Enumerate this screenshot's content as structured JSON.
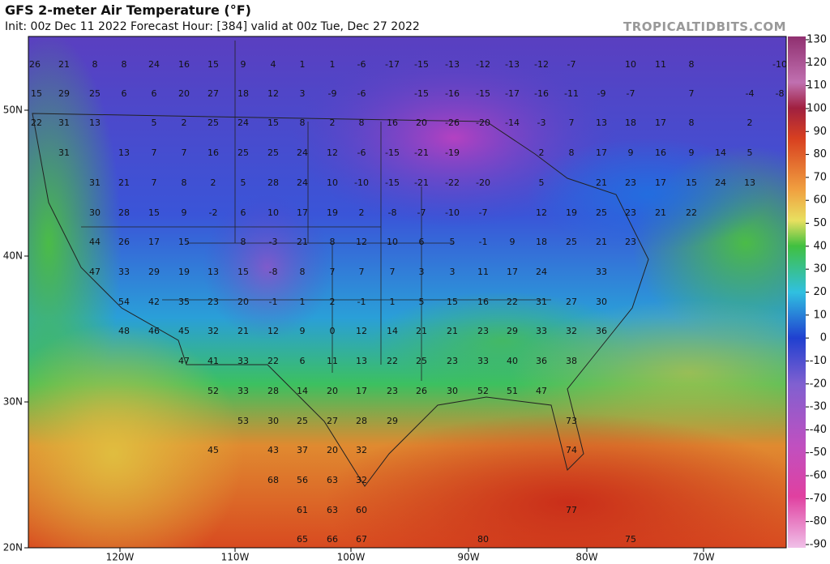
{
  "header": {
    "title": "GFS 2-meter Air Temperature (°F)",
    "subtitle": "Init: 00z Dec 11 2022   Forecast Hour: [384]   valid at 00z Tue, Dec 27 2022",
    "brand": "TROPICALTIDBITS.COM"
  },
  "map": {
    "lat_labels": [
      "50N",
      "40N",
      "30N",
      "20N"
    ],
    "lon_labels": [
      "120W",
      "110W",
      "100W",
      "90W",
      "80W",
      "70W"
    ],
    "colorbar_ticks": [
      130,
      120,
      110,
      100,
      90,
      80,
      70,
      60,
      50,
      40,
      30,
      20,
      10,
      0,
      -10,
      -20,
      -30,
      -40,
      -50,
      -60,
      -70,
      -80,
      -90
    ],
    "station_values": [
      [
        26,
        21,
        8,
        8,
        24,
        16,
        15,
        9,
        4,
        1,
        1,
        -6,
        -17,
        -15,
        -13,
        -12,
        -13,
        -12,
        -7,
        10,
        11,
        8,
        -10
      ],
      [
        15,
        29,
        25,
        6,
        6,
        20,
        27,
        18,
        12,
        3,
        -9,
        -6,
        -15,
        -16,
        -15,
        -17,
        -16,
        -11,
        -9,
        -7,
        7,
        -4,
        -8
      ],
      [
        22,
        31,
        13,
        5,
        2,
        25,
        24,
        15,
        8,
        2,
        8,
        16,
        20,
        -26,
        -20,
        -14,
        -3,
        7,
        13,
        18,
        17,
        8,
        2
      ],
      [
        31,
        13,
        7,
        7,
        16,
        25,
        25,
        24,
        12,
        -6,
        -15,
        -21,
        -19,
        2,
        8,
        17,
        9,
        16,
        9,
        14,
        5
      ],
      [
        31,
        21,
        7,
        8,
        2,
        5,
        28,
        24,
        10,
        -10,
        -15,
        -21,
        -22,
        -20,
        5,
        21,
        23,
        17,
        15,
        24,
        13
      ],
      [
        30,
        28,
        15,
        9,
        -2,
        6,
        10,
        17,
        19,
        2,
        -8,
        -7,
        -10,
        -7,
        12,
        19,
        25,
        23,
        21,
        22
      ],
      [
        44,
        26,
        17,
        15,
        8,
        -3,
        21,
        8,
        12,
        10,
        6,
        5,
        -1,
        9,
        18,
        25,
        21,
        23
      ],
      [
        47,
        33,
        29,
        19,
        13,
        15,
        -8,
        8,
        7,
        7,
        7,
        3,
        3,
        11,
        17,
        24,
        33
      ],
      [
        54,
        42,
        35,
        23,
        20,
        -1,
        1,
        2,
        -1,
        1,
        5,
        15,
        16,
        22,
        31,
        27,
        30
      ],
      [
        48,
        46,
        45,
        32,
        21,
        12,
        9,
        0,
        12,
        14,
        21,
        21,
        23,
        29,
        33,
        32,
        36
      ],
      [
        47,
        41,
        33,
        22,
        6,
        11,
        13,
        22,
        25,
        23,
        33,
        40,
        36,
        38
      ],
      [
        52,
        33,
        28,
        14,
        20,
        17,
        23,
        26,
        30,
        52,
        51,
        47
      ],
      [
        53,
        30,
        25,
        27,
        28,
        29,
        73
      ],
      [
        45,
        43,
        37,
        20,
        32,
        74
      ],
      [
        68,
        56,
        63,
        32
      ],
      [
        61,
        63,
        60,
        77
      ],
      [
        65,
        66,
        67,
        80,
        75
      ]
    ]
  }
}
